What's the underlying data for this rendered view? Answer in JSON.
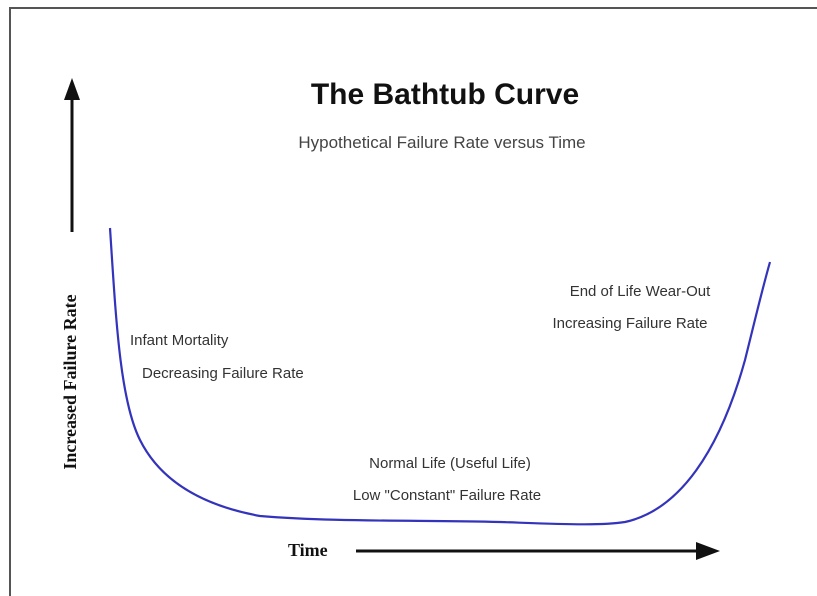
{
  "title": "The Bathtub Curve",
  "subtitle": "Hypothetical Failure Rate versus Time",
  "y_axis_label": "Increased Failure Rate",
  "x_axis_label": "Time",
  "annotations": [
    {
      "lines": [
        "Infant Mortality",
        "Decreasing Failure Rate"
      ]
    },
    {
      "lines": [
        "Normal Life (Useful Life)",
        "Low \"Constant\" Failure Rate"
      ]
    },
    {
      "lines": [
        "End of Life Wear-Out",
        "Increasing Failure Rate"
      ]
    }
  ]
}
